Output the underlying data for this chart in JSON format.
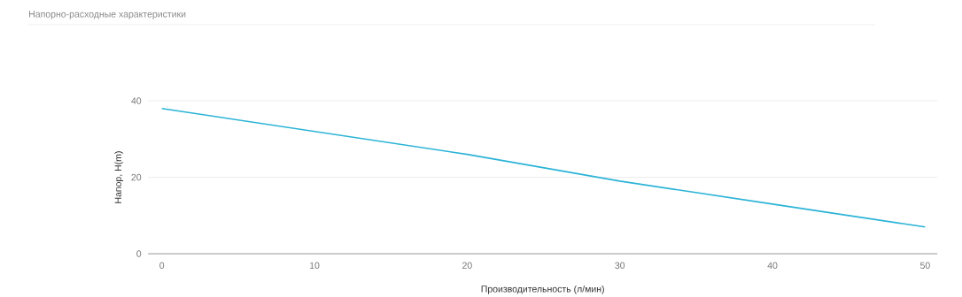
{
  "chart_data": {
    "type": "line",
    "title": "Напорно-расходные характеристики",
    "xlabel": "Производительность (л/мин)",
    "ylabel": "Напор, H(m)",
    "x": [
      0,
      10,
      20,
      30,
      40,
      50
    ],
    "series": [
      {
        "color": "#2bb3d6",
        "values": [
          38,
          32,
          26,
          19,
          13,
          7
        ]
      }
    ],
    "xlim": [
      -0.9,
      50.8
    ],
    "ylim": [
      0,
      40
    ],
    "xticks": [
      0,
      10,
      20,
      30,
      40,
      50
    ],
    "yticks": [
      0,
      20,
      40
    ],
    "grid": "y",
    "marker": "none",
    "line_style": "solid"
  }
}
